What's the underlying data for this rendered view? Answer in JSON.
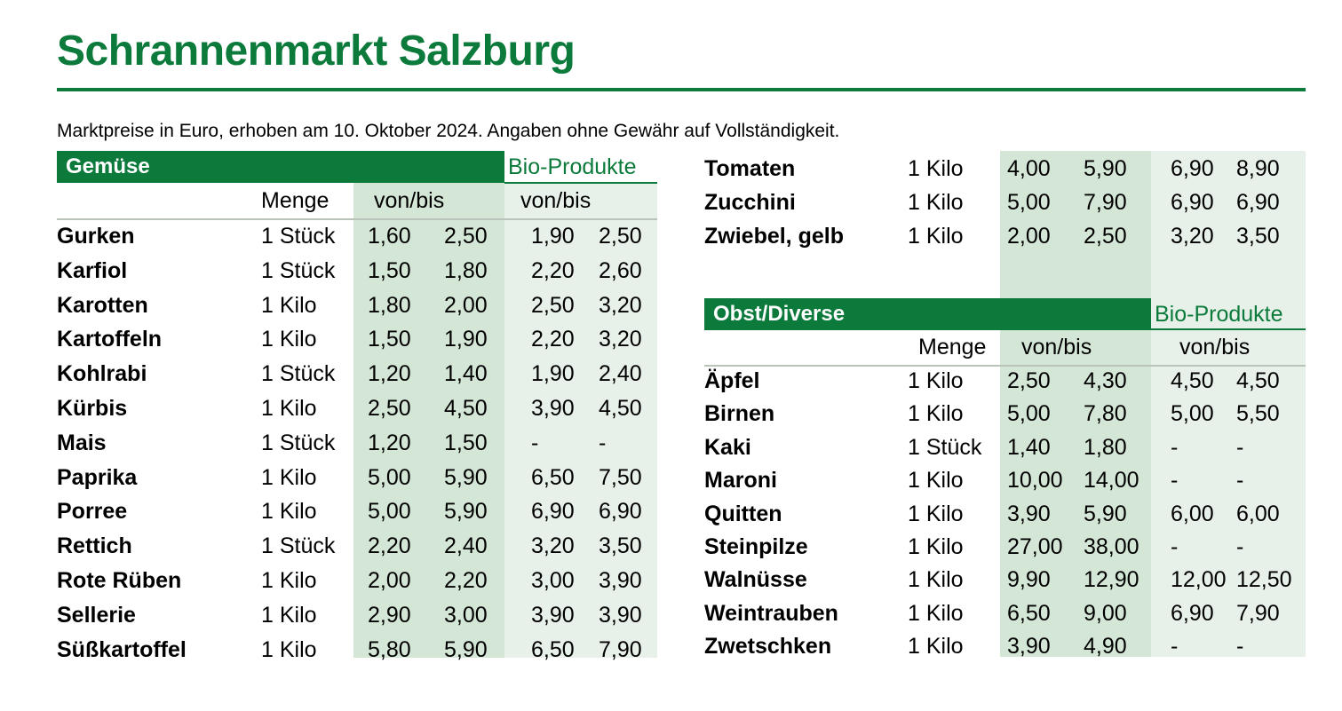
{
  "title": "Schrannenmarkt Salzburg",
  "subtitle": "Marktpreise in Euro, erhoben am 10. Oktober 2024. Angaben ohne Gewähr auf Vollständigkeit.",
  "colors": {
    "accent": "#0b7a3b",
    "shade_regular": "#d4e6d6",
    "shade_bio": "#e8f1e9"
  },
  "gemuese": {
    "section_label": "Gemüse",
    "bio_label": "Bio-Produkte",
    "menge_header": "Menge",
    "range_header": "von/bis",
    "bio_range_header": "von/bis",
    "rows": [
      {
        "name": "Gurken",
        "menge": "1 Stück",
        "von": "1,60",
        "bis": "2,50",
        "bio_von": "1,90",
        "bio_bis": "2,50"
      },
      {
        "name": "Karfiol",
        "menge": "1 Stück",
        "von": "1,50",
        "bis": "1,80",
        "bio_von": "2,20",
        "bio_bis": "2,60"
      },
      {
        "name": "Karotten",
        "menge": "1 Kilo",
        "von": "1,80",
        "bis": "2,00",
        "bio_von": "2,50",
        "bio_bis": "3,20"
      },
      {
        "name": "Kartoffeln",
        "menge": "1 Kilo",
        "von": "1,50",
        "bis": "1,90",
        "bio_von": "2,20",
        "bio_bis": "3,20"
      },
      {
        "name": "Kohlrabi",
        "menge": "1 Stück",
        "von": "1,20",
        "bis": "1,40",
        "bio_von": "1,90",
        "bio_bis": "2,40"
      },
      {
        "name": "Kürbis",
        "menge": "1 Kilo",
        "von": "2,50",
        "bis": "4,50",
        "bio_von": "3,90",
        "bio_bis": "4,50"
      },
      {
        "name": "Mais",
        "menge": "1 Stück",
        "von": "1,20",
        "bis": "1,50",
        "bio_von": "-",
        "bio_bis": "-"
      },
      {
        "name": "Paprika",
        "menge": "1 Kilo",
        "von": "5,00",
        "bis": "5,90",
        "bio_von": "6,50",
        "bio_bis": "7,50"
      },
      {
        "name": "Porree",
        "menge": "1 Kilo",
        "von": "5,00",
        "bis": "5,90",
        "bio_von": "6,90",
        "bio_bis": "6,90"
      },
      {
        "name": "Rettich",
        "menge": "1 Stück",
        "von": "2,20",
        "bis": "2,40",
        "bio_von": "3,20",
        "bio_bis": "3,50"
      },
      {
        "name": "Rote Rüben",
        "menge": "1 Kilo",
        "von": "2,00",
        "bis": "2,20",
        "bio_von": "3,00",
        "bio_bis": "3,90"
      },
      {
        "name": "Sellerie",
        "menge": "1 Kilo",
        "von": "2,90",
        "bis": "3,00",
        "bio_von": "3,90",
        "bio_bis": "3,90"
      },
      {
        "name": "Süßkartoffel",
        "menge": "1 Kilo",
        "von": "5,80",
        "bis": "5,90",
        "bio_von": "6,50",
        "bio_bis": "7,90"
      }
    ]
  },
  "gemuese_cont": {
    "rows": [
      {
        "name": "Tomaten",
        "menge": "1 Kilo",
        "von": "4,00",
        "bis": "5,90",
        "bio_von": "6,90",
        "bio_bis": "8,90"
      },
      {
        "name": "Zucchini",
        "menge": "1 Kilo",
        "von": "5,00",
        "bis": "7,90",
        "bio_von": "6,90",
        "bio_bis": "6,90"
      },
      {
        "name": "Zwiebel, gelb",
        "menge": "1 Kilo",
        "von": "2,00",
        "bis": "2,50",
        "bio_von": "3,20",
        "bio_bis": "3,50"
      }
    ]
  },
  "obst": {
    "section_label": "Obst/Diverse",
    "bio_label": "Bio-Produkte",
    "menge_header": "Menge",
    "range_header": "von/bis",
    "bio_range_header": "von/bis",
    "rows": [
      {
        "name": "Äpfel",
        "menge": "1 Kilo",
        "von": "2,50",
        "bis": "4,30",
        "bio_von": "4,50",
        "bio_bis": "4,50"
      },
      {
        "name": "Birnen",
        "menge": "1 Kilo",
        "von": "5,00",
        "bis": "7,80",
        "bio_von": "5,00",
        "bio_bis": "5,50"
      },
      {
        "name": "Kaki",
        "menge": "1 Stück",
        "von": "1,40",
        "bis": "1,80",
        "bio_von": "-",
        "bio_bis": "-"
      },
      {
        "name": "Maroni",
        "menge": "1 Kilo",
        "von": "10,00",
        "bis": "14,00",
        "bio_von": "-",
        "bio_bis": "-"
      },
      {
        "name": "Quitten",
        "menge": "1 Kilo",
        "von": "3,90",
        "bis": "5,90",
        "bio_von": "6,00",
        "bio_bis": "6,00"
      },
      {
        "name": "Steinpilze",
        "menge": "1 Kilo",
        "von": "27,00",
        "bis": "38,00",
        "bio_von": "-",
        "bio_bis": "-"
      },
      {
        "name": "Walnüsse",
        "menge": "1 Kilo",
        "von": "9,90",
        "bis": "12,90",
        "bio_von": "12,00",
        "bio_bis": "12,50"
      },
      {
        "name": "Weintrauben",
        "menge": "1 Kilo",
        "von": "6,50",
        "bis": "9,00",
        "bio_von": "6,90",
        "bio_bis": "7,90"
      },
      {
        "name": "Zwetschken",
        "menge": "1 Kilo",
        "von": "3,90",
        "bis": "4,90",
        "bio_von": "-",
        "bio_bis": "-"
      }
    ]
  }
}
